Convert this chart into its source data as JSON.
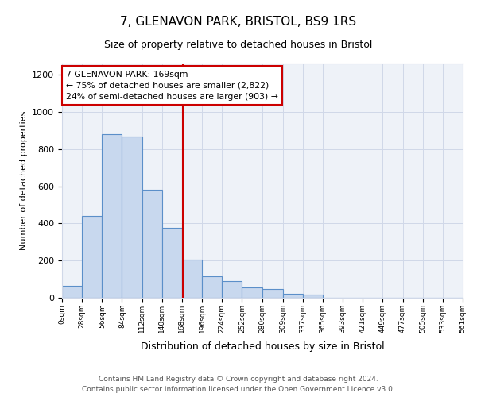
{
  "title": "7, GLENAVON PARK, BRISTOL, BS9 1RS",
  "subtitle": "Size of property relative to detached houses in Bristol",
  "xlabel": "Distribution of detached houses by size in Bristol",
  "ylabel": "Number of detached properties",
  "bar_color": "#c8d8ee",
  "bar_edge_color": "#5b8fc9",
  "background_color": "#eef2f8",
  "grid_color": "#d0d8e8",
  "annotation_box_edge": "#cc0000",
  "vline_color": "#cc0000",
  "annotation_title": "7 GLENAVON PARK: 169sqm",
  "annotation_line1": "← 75% of detached houses are smaller (2,822)",
  "annotation_line2": "24% of semi-detached houses are larger (903) →",
  "property_size": 169,
  "bins": [
    0,
    28,
    56,
    84,
    112,
    140,
    168,
    196,
    224,
    252,
    280,
    309,
    337,
    365,
    393,
    421,
    449,
    477,
    505,
    533,
    561
  ],
  "counts": [
    65,
    440,
    880,
    865,
    580,
    375,
    205,
    115,
    88,
    55,
    45,
    22,
    18,
    0,
    0,
    0,
    0,
    0,
    0,
    0
  ],
  "ylim": [
    0,
    1260
  ],
  "yticks": [
    0,
    200,
    400,
    600,
    800,
    1000,
    1200
  ],
  "footer_line1": "Contains HM Land Registry data © Crown copyright and database right 2024.",
  "footer_line2": "Contains public sector information licensed under the Open Government Licence v3.0."
}
